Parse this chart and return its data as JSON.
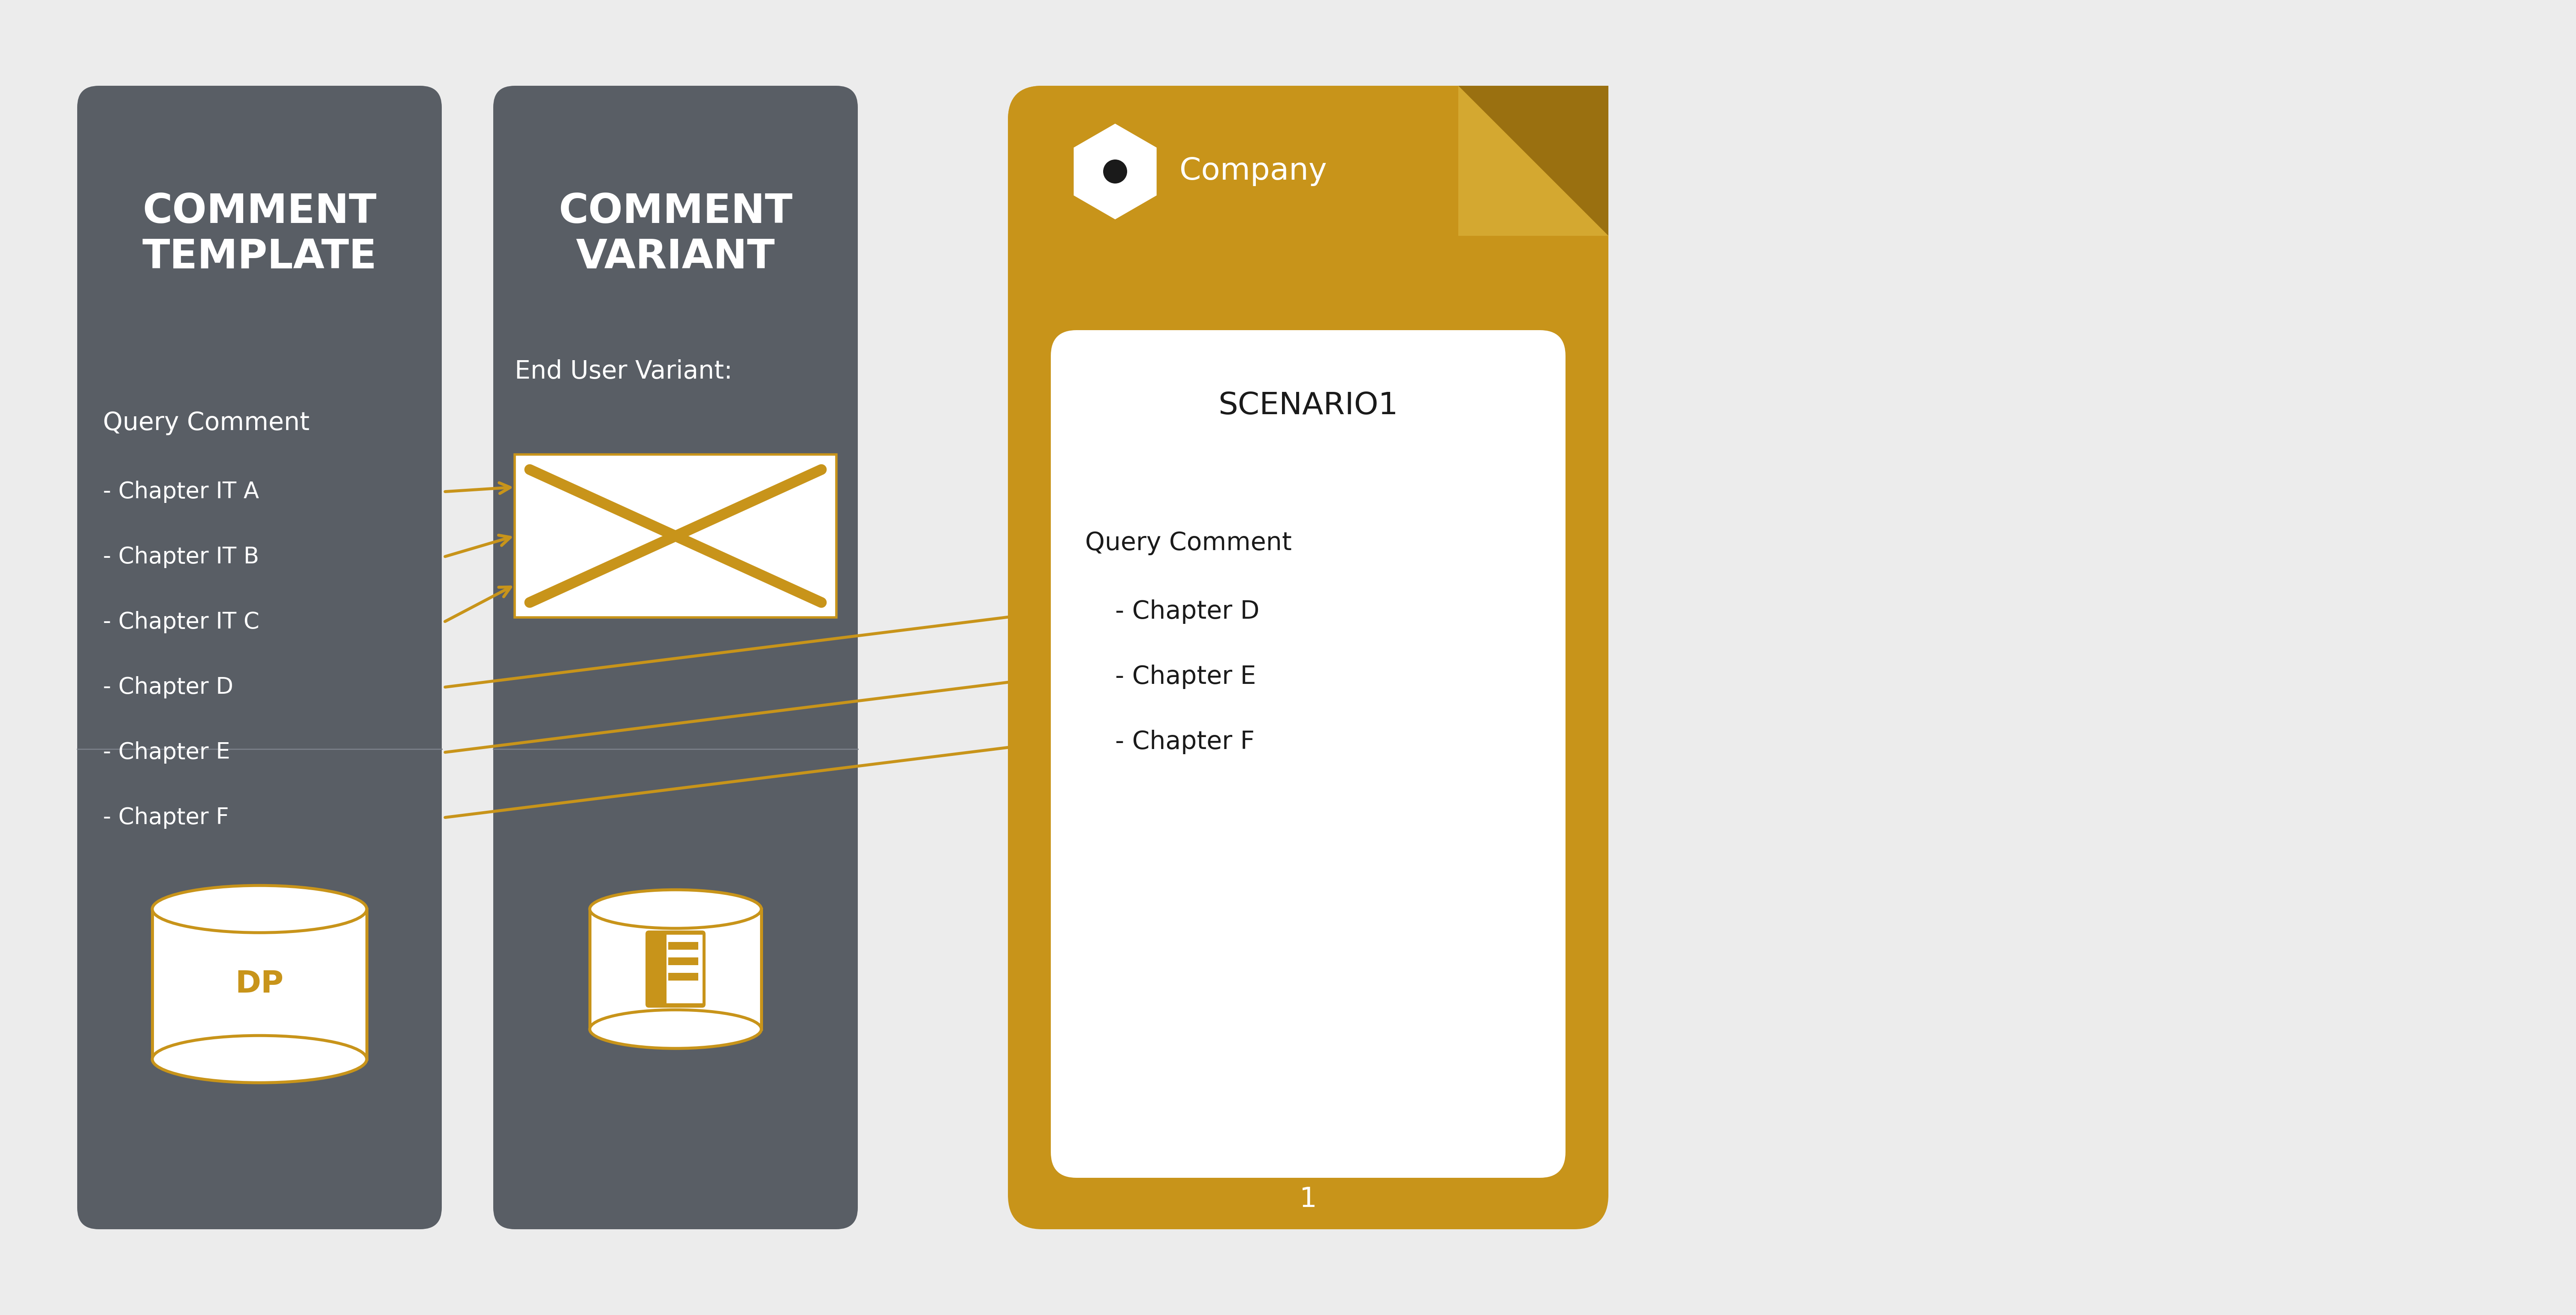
{
  "bg_color": "#ececec",
  "dark_gray": "#595e65",
  "gold": "#C8941A",
  "gold_dark": "#9A7010",
  "white": "#FFFFFF",
  "black": "#1a1a1a",
  "panel1_title": "COMMENT\nTEMPLATE",
  "panel2_title": "COMMENT\nVARIANT",
  "query_comment_label": "Query Comment",
  "chapters_left": [
    "- Chapter IT A",
    "- Chapter IT B",
    "- Chapter IT C",
    "- Chapter D",
    "- Chapter E",
    "- Chapter F"
  ],
  "end_user_variant_label": "End User Variant:",
  "dp_label": "DP",
  "scenario_title": "SCENARIO1",
  "query_comment_label2": "Query Comment",
  "chapters_right": [
    "- Chapter D",
    "- Chapter E",
    "- Chapter F"
  ],
  "page_number": "1",
  "company_label": "Company"
}
